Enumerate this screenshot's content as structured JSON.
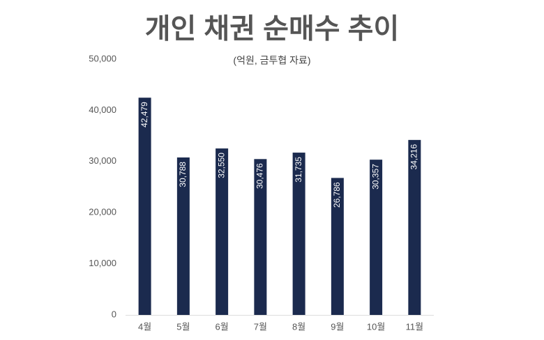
{
  "chart_data": {
    "type": "bar",
    "title": "개인 채권 순매수 추이",
    "subtitle": "(억원, 금투협 자료)",
    "categories": [
      "4월",
      "5월",
      "6월",
      "7월",
      "8월",
      "9월",
      "10월",
      "11월"
    ],
    "values": [
      42479,
      30788,
      32550,
      30476,
      31735,
      26786,
      30357,
      34216
    ],
    "value_labels": [
      "42,479",
      "30,788",
      "32,550",
      "30,476",
      "31,735",
      "26,786",
      "30,357",
      "34,216"
    ],
    "color": "#1b2a4e",
    "ylim": [
      0,
      50000
    ],
    "yticks": [
      0,
      {
        "value": 10000,
        "label": "10,000"
      },
      {
        "value": 20000,
        "label": "20,000"
      },
      {
        "value": 30000,
        "label": "30,000"
      },
      {
        "value": 40000,
        "label": "40,000"
      },
      {
        "value": 50000,
        "label": "50,000"
      }
    ],
    "grid": false
  }
}
